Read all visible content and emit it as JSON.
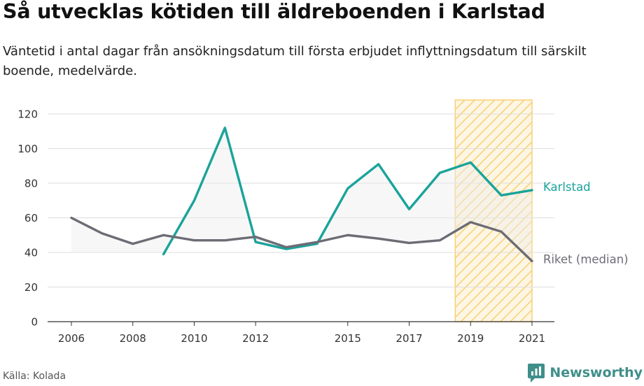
{
  "title": "Så utvecklas kötiden till äldreboenden i Karlstad",
  "subtitle": "Väntetid i antal dagar från ansökningsdatum till första erbjudet inflyttningsdatum till särskilt boende, medelvärde.",
  "source": "Källa: Kolada",
  "brand": "Newsworthy",
  "colors": {
    "karlstad": "#1aa39a",
    "riket": "#6d6c75",
    "highlight": "#f7c85a",
    "grid": "#dddddd"
  },
  "chart_data": {
    "type": "line",
    "ylim": [
      0,
      120
    ],
    "xlim": [
      2006,
      2021
    ],
    "yticks": [
      0,
      20,
      40,
      60,
      80,
      100,
      120
    ],
    "xticks": [
      2006,
      2008,
      2010,
      2012,
      2015,
      2017,
      2019,
      2021
    ],
    "highlight_range": [
      2018.5,
      2021
    ],
    "series": [
      {
        "name": "Karlstad",
        "x": [
          2009,
          2010,
          2011,
          2012,
          2013,
          2014,
          2015,
          2016,
          2017,
          2018,
          2019,
          2020,
          2021
        ],
        "values": [
          39,
          70,
          112,
          46,
          42,
          45,
          77,
          91,
          65,
          86,
          92,
          73,
          76
        ]
      },
      {
        "name": "Riket (median)",
        "x": [
          2006,
          2007,
          2008,
          2009,
          2010,
          2011,
          2012,
          2013,
          2014,
          2015,
          2016,
          2017,
          2018,
          2019,
          2020,
          2021
        ],
        "values": [
          60,
          51,
          45,
          50,
          47,
          47,
          49,
          43,
          46,
          50,
          48,
          45.5,
          47,
          57.5,
          52,
          35
        ]
      }
    ]
  }
}
